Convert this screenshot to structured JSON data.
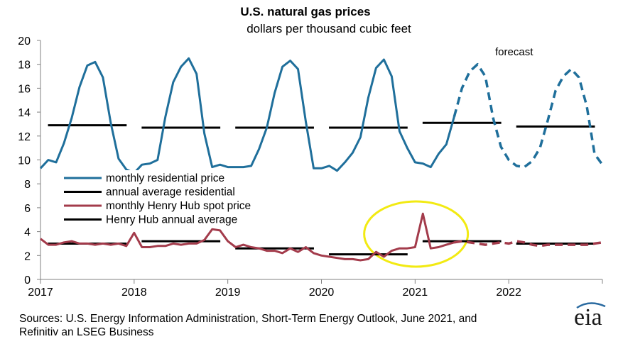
{
  "colors": {
    "residential": "#1f6f9b",
    "annual": "#000000",
    "henry": "#a33b4b",
    "highlight": "#f2ea12",
    "axis": "#808080"
  },
  "chart_data": {
    "type": "line",
    "title": "U.S. natural gas prices",
    "subtitle": "dollars per thousand cubic feet",
    "ylim": [
      0,
      20
    ],
    "yticks": [
      "0",
      "2",
      "4",
      "6",
      "8",
      "10",
      "12",
      "14",
      "16",
      "18",
      "20"
    ],
    "xlim": [
      2017,
      2023
    ],
    "xticks": [
      "2017",
      "2018",
      "2019",
      "2020",
      "2021",
      "2022"
    ],
    "forecast_label": "forecast",
    "forecast_start": "2021-06",
    "legend": [
      {
        "name": "monthly residential price",
        "color_key": "residential"
      },
      {
        "name": "annual average residential",
        "color_key": "annual"
      },
      {
        "name": "monthly Henry Hub spot price",
        "color_key": "henry"
      },
      {
        "name": "Henry Hub annual average",
        "color_key": "annual"
      }
    ],
    "series": [
      {
        "key": "residential",
        "values": [
          9.3,
          10.0,
          9.8,
          11.4,
          13.5,
          16.1,
          17.9,
          18.2,
          16.9,
          13.1,
          10.1,
          9.2,
          8.9,
          9.6,
          9.7,
          10.0,
          13.6,
          16.5,
          17.8,
          18.5,
          17.2,
          12.2,
          9.4,
          9.6,
          9.4,
          9.4,
          9.4,
          9.5,
          10.9,
          12.7,
          15.6,
          17.8,
          18.3,
          17.6,
          13.2,
          9.3,
          9.3,
          9.5,
          9.1,
          9.8,
          10.6,
          11.9,
          15.2,
          17.7,
          18.4,
          17.0,
          12.4,
          11.0,
          9.8,
          9.7,
          9.4,
          10.5,
          11.3,
          13.6,
          16.0,
          17.4,
          18.0,
          17.0,
          13.5,
          11.1,
          10.0,
          9.5,
          9.4,
          9.9,
          11.0,
          13.3,
          15.8,
          17.0,
          17.6,
          16.9,
          14.5,
          10.5,
          9.6
        ]
      },
      {
        "key": "henry",
        "values": [
          3.4,
          2.9,
          2.9,
          3.1,
          3.2,
          3.0,
          3.0,
          2.9,
          3.0,
          2.9,
          3.0,
          2.8,
          3.9,
          2.7,
          2.7,
          2.8,
          2.8,
          3.0,
          2.9,
          3.0,
          3.0,
          3.3,
          4.2,
          4.1,
          3.2,
          2.7,
          2.9,
          2.7,
          2.6,
          2.4,
          2.4,
          2.2,
          2.6,
          2.3,
          2.7,
          2.2,
          2.0,
          1.9,
          1.8,
          1.7,
          1.7,
          1.6,
          1.7,
          2.3,
          1.9,
          2.4,
          2.6,
          2.6,
          2.7,
          5.5,
          2.6,
          2.7,
          2.9,
          3.1,
          3.2,
          3.1,
          3.0,
          2.9,
          3.0,
          3.1,
          3.0,
          3.2,
          3.1,
          2.9,
          2.8,
          2.9,
          2.9,
          2.9,
          2.9,
          2.9,
          2.9,
          3.0,
          3.1
        ]
      }
    ],
    "annual_residential": [
      {
        "year": "2017",
        "value": 12.9
      },
      {
        "year": "2018",
        "value": 12.7
      },
      {
        "year": "2019",
        "value": 12.7
      },
      {
        "year": "2020",
        "value": 12.7
      },
      {
        "year": "2021",
        "value": 13.1
      },
      {
        "year": "2022",
        "value": 12.8
      }
    ],
    "annual_henry": [
      {
        "year": "2017",
        "value": 3.0
      },
      {
        "year": "2018",
        "value": 3.2
      },
      {
        "year": "2019",
        "value": 2.6
      },
      {
        "year": "2020",
        "value": 2.1
      },
      {
        "year": "2021",
        "value": 3.2
      },
      {
        "year": "2022",
        "value": 3.0
      }
    ],
    "highlight": {
      "center_year": 2021.01,
      "center_value": 3.8
    }
  },
  "source_lines": [
    "Sources: U.S. Energy Information Administration, Short-Term Energy Outlook, June 2021, and",
    "Refinitiv an LSEG Business"
  ],
  "logo_text": "eia"
}
